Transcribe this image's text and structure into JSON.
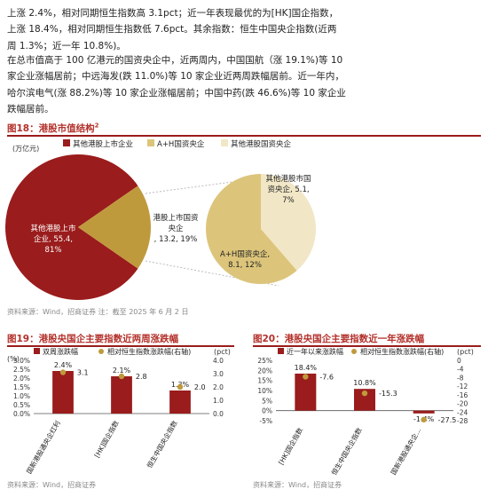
{
  "paragraphs": [
    [
      "上涨 2.4%，相对同期恒生指数高 3.1pct；近一年表现最优的为[HK]国企指数，",
      "上涨 18.4%，相对同期恒生指数低 7.6pct。其余指数：恒生中国央企指数(近两",
      "周 1.3%；近一年 10.8%)。"
    ],
    [
      "在总市值高于 100 亿港元的国资央企中，近两周内，中国国航（涨 19.1%)等 10",
      "家企业涨幅居前；中远海发(跌 11.0%)等 10 家企业近两周跌幅居前。近一年内，",
      "哈尔滨电气(涨 88.2%)等 10 家企业涨幅居前；中国中药(跌 46.6%)等 10 家企业",
      "跌幅居前。"
    ]
  ],
  "fig18": {
    "title": "图18：港股市值结构",
    "title_sup": "2",
    "unit": "(万亿元)",
    "legend": [
      "其他港股上市企业",
      "A+H国资央企",
      "其他港股国资央企"
    ],
    "labels": {
      "other": [
        "其他港股上市",
        "企业, 55.4,",
        "81%"
      ],
      "soe": [
        "港股上市国资",
        "央企",
        ", 13.2, 19%"
      ],
      "other_soe": [
        "其他港股市国",
        "资央企, 5.1,",
        "7%"
      ],
      "ah": [
        "A+H国资央企,",
        "8.1, 12%"
      ]
    },
    "source": "资料来源：Wind，招商证券   注：截至 2025 年 6 月 2 日"
  },
  "fig19": {
    "title": "图19：港股央国企主要指数近两周涨跌幅",
    "legend": [
      "双周涨跌幅",
      "相对恒生指数涨跌幅(右轴)"
    ],
    "left_unit": "(%)",
    "right_unit": "(pct)",
    "source": "资料来源：Wind，招商证券"
  },
  "fig20": {
    "title": "图20：港股央国企主要指数近一年涨跌幅",
    "legend": [
      "近一年以来涨跌幅",
      "相对恒生指数涨跌幅(右轴)"
    ],
    "right_unit": "(pct)",
    "source": "资料来源：Wind，招商证券"
  },
  "colors": {
    "red": "#9a1c1c",
    "gold": "#bf9a3d",
    "light_gold": "#dcc57b",
    "pale": "#f1e7c6"
  },
  "chart_data": [
    {
      "type": "pie",
      "title": "港股市值结构",
      "unit": "万亿元",
      "slices": [
        {
          "name": "其他港股上市企业",
          "value": 55.4,
          "percent": 81
        },
        {
          "name": "港股上市国资央企",
          "value": 13.2,
          "percent": 19
        }
      ],
      "breakdown": {
        "of": "港股上市国资央企",
        "slices": [
          {
            "name": "A+H国资央企",
            "value": 8.1,
            "percent": 12
          },
          {
            "name": "其他港股市国资央企",
            "value": 5.1,
            "percent": 7
          }
        ]
      }
    },
    {
      "type": "bar",
      "title": "港股央国企主要指数近两周涨跌幅",
      "categories": [
        "国新港股通央企红利",
        "[HK]国企指数",
        "恒生中国央企指数"
      ],
      "series": [
        {
          "name": "双周涨跌幅",
          "values": [
            2.4,
            2.1,
            1.3
          ],
          "labels": [
            "2.4%",
            "2.1%",
            "1.3%"
          ],
          "axis": "left"
        },
        {
          "name": "相对恒生指数涨跌幅(右轴)",
          "values": [
            3.1,
            2.8,
            2.0
          ],
          "labels": [
            "3.1",
            "2.8",
            "2.0"
          ],
          "axis": "right",
          "marker": "point"
        }
      ],
      "ylabel": "(%)",
      "ylim": [
        0,
        3.0
      ],
      "yticks": [
        "0.0%",
        "0.5%",
        "1.0%",
        "1.5%",
        "2.0%",
        "2.5%",
        "3.0%"
      ],
      "y2label": "(pct)",
      "y2lim": [
        0,
        4.0
      ],
      "y2ticks": [
        "0.0",
        "1.0",
        "2.0",
        "3.0",
        "4.0"
      ]
    },
    {
      "type": "bar",
      "title": "港股央国企主要指数近一年涨跌幅",
      "categories": [
        "[HK]国企指数",
        "恒生中国央企指数",
        "国新港股通央企..."
      ],
      "series": [
        {
          "name": "近一年以来涨跌幅",
          "values": [
            18.4,
            10.8,
            -1.4
          ],
          "labels": [
            "18.4%",
            "10.8%",
            "-1.4%"
          ],
          "axis": "left"
        },
        {
          "name": "相对恒生指数涨跌幅(右轴)",
          "values": [
            -7.6,
            -15.3,
            -27.5
          ],
          "labels": [
            "-7.6",
            "-15.3",
            "-27.5"
          ],
          "axis": "right",
          "marker": "point"
        }
      ],
      "ylim": [
        -5,
        25
      ],
      "yticks": [
        "-5%",
        "0%",
        "5%",
        "10%",
        "15%",
        "20%",
        "25%"
      ],
      "y2label": "(pct)",
      "y2lim": [
        -28,
        0
      ],
      "y2ticks": [
        "0",
        "-4",
        "-8",
        "-12",
        "-16",
        "-20",
        "-24",
        "-28"
      ]
    }
  ]
}
